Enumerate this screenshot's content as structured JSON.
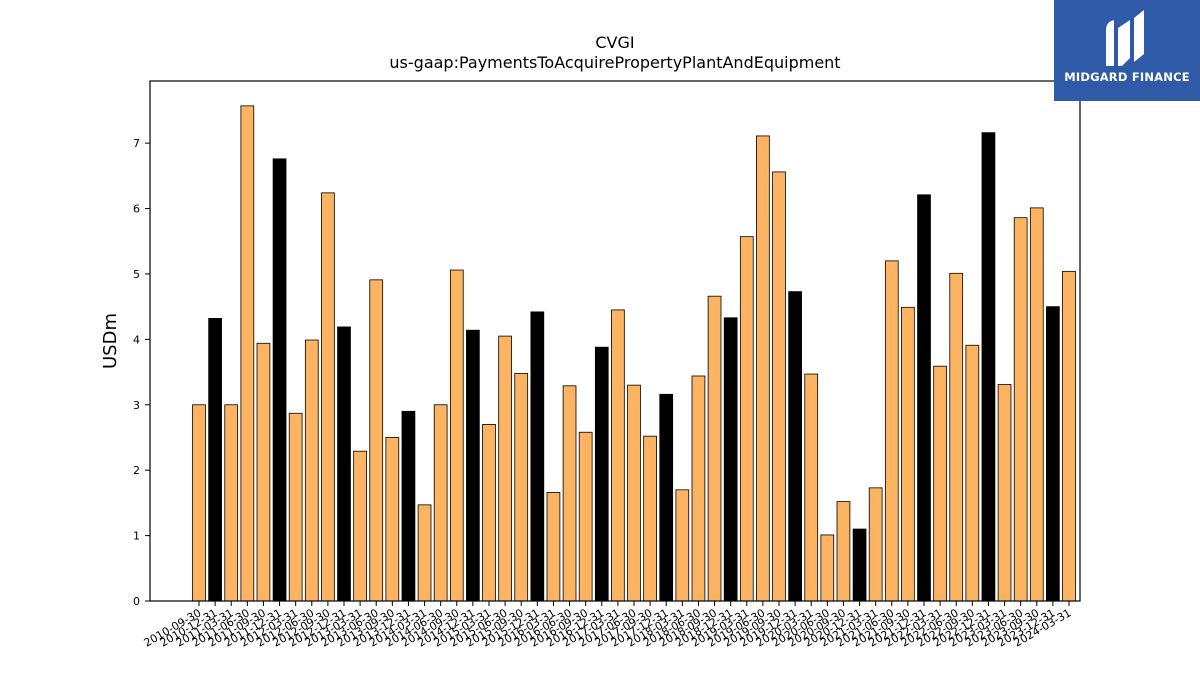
{
  "chart_data": {
    "type": "bar",
    "title": "CVGI",
    "subtitle": "us-gaap:PaymentsToAcquirePropertyPlantAndEquipment",
    "ylabel": "USDm",
    "xlabel": "",
    "ylim": [
      0,
      7.95
    ],
    "yticks": [
      0,
      1,
      2,
      3,
      4,
      5,
      6,
      7
    ],
    "grid": false,
    "colors": {
      "quarter": "#fdb462",
      "annual": "#000000",
      "edge": "#000000"
    },
    "categories": [
      "2010-09-30",
      "2010-12-31",
      "2011-03-31",
      "2011-06-30",
      "2011-09-30",
      "2011-12-31",
      "2012-03-31",
      "2012-06-30",
      "2012-09-30",
      "2012-12-31",
      "2013-03-31",
      "2013-06-30",
      "2013-09-30",
      "2013-12-31",
      "2014-03-31",
      "2014-06-30",
      "2014-09-30",
      "2014-12-31",
      "2015-03-31",
      "2015-06-30",
      "2015-09-30",
      "2015-12-31",
      "2016-03-31",
      "2016-06-30",
      "2016-09-30",
      "2016-12-31",
      "2017-03-31",
      "2017-06-30",
      "2017-09-30",
      "2017-12-31",
      "2018-03-31",
      "2018-06-30",
      "2018-09-30",
      "2018-12-31",
      "2019-03-31",
      "2019-06-30",
      "2019-09-30",
      "2019-12-31",
      "2020-03-31",
      "2020-06-30",
      "2020-09-30",
      "2020-12-31",
      "2021-03-31",
      "2021-06-30",
      "2021-09-30",
      "2021-12-31",
      "2022-03-31",
      "2022-06-30",
      "2022-09-30",
      "2022-12-31",
      "2023-03-31",
      "2023-06-30",
      "2023-09-30",
      "2023-12-31",
      "2024-03-31"
    ],
    "values": [
      3.0,
      4.32,
      3.0,
      7.57,
      3.94,
      6.76,
      2.87,
      3.99,
      6.24,
      4.19,
      2.29,
      4.91,
      2.5,
      2.9,
      1.47,
      3.0,
      5.06,
      4.14,
      2.7,
      4.05,
      3.48,
      4.42,
      1.66,
      3.29,
      2.58,
      3.88,
      4.45,
      3.3,
      2.52,
      3.16,
      1.7,
      3.44,
      4.66,
      4.33,
      5.57,
      7.11,
      6.56,
      4.73,
      3.47,
      1.01,
      1.52,
      1.1,
      1.73,
      5.2,
      4.49,
      6.21,
      3.59,
      5.01,
      3.91,
      7.16,
      3.31,
      5.86,
      6.01,
      4.5,
      5.04
    ],
    "annual_flags": [
      0,
      1,
      0,
      0,
      0,
      1,
      0,
      0,
      0,
      1,
      0,
      0,
      0,
      1,
      0,
      0,
      0,
      1,
      0,
      0,
      0,
      1,
      0,
      0,
      0,
      1,
      0,
      0,
      0,
      1,
      0,
      0,
      0,
      1,
      0,
      0,
      0,
      1,
      0,
      0,
      0,
      1,
      0,
      0,
      0,
      1,
      0,
      0,
      0,
      1,
      0,
      0,
      0,
      1,
      0
    ]
  },
  "logo": {
    "text": "MIDGARD FINANCE"
  }
}
